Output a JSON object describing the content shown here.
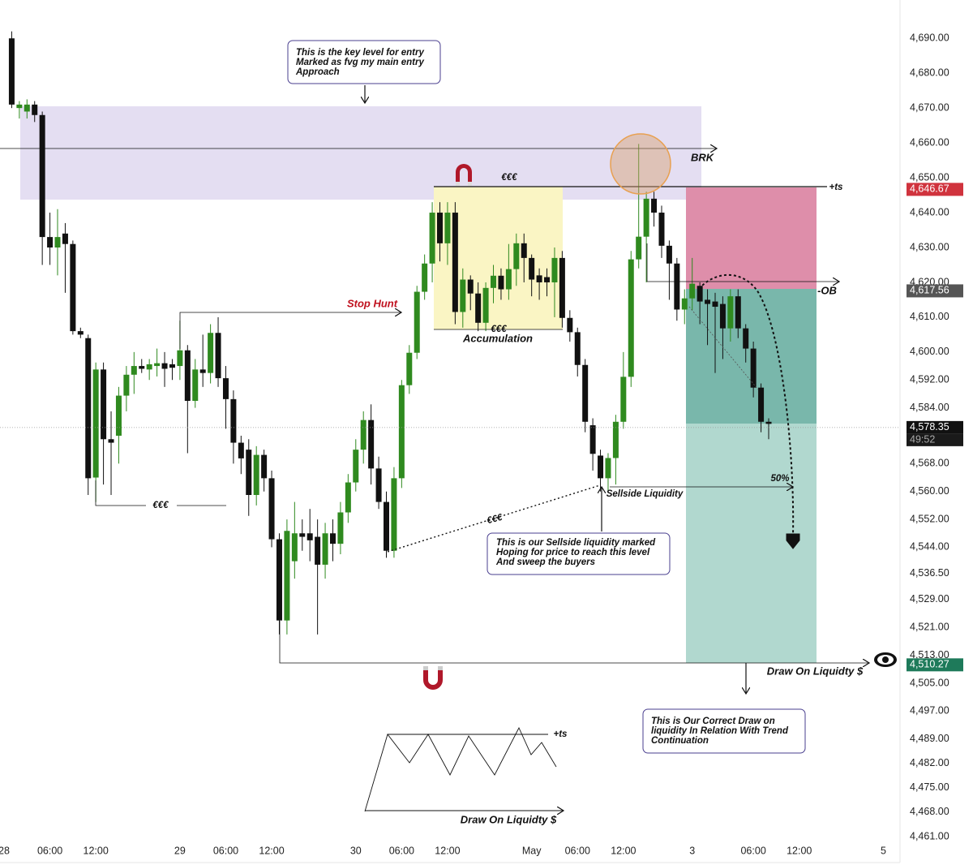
{
  "chart_data": {
    "type": "candlestick",
    "up_color": "#2f8a1f",
    "down_color": "#111111",
    "x": [
      1,
      2,
      3,
      4,
      5,
      6,
      7,
      8,
      9,
      10,
      11,
      12,
      13,
      14,
      15,
      16,
      17,
      18,
      19,
      20,
      21,
      22,
      23,
      24,
      25,
      26,
      27,
      28,
      29,
      30,
      31,
      32,
      33,
      34,
      35,
      36,
      37,
      38,
      39,
      40,
      41,
      42,
      43,
      44,
      45,
      46,
      47,
      48,
      49,
      50,
      51,
      52,
      53,
      54,
      55,
      56,
      57,
      58,
      59,
      60,
      61,
      62,
      63,
      64,
      65,
      66,
      67,
      68,
      69,
      70,
      71,
      72,
      73,
      74,
      75,
      76,
      77,
      78,
      79,
      80,
      81,
      82,
      83,
      84,
      85,
      86,
      87,
      88,
      89,
      90,
      91,
      92,
      93,
      94,
      95,
      96,
      97,
      98,
      99,
      100
    ],
    "open": [
      4690,
      4670,
      4669,
      4671,
      4668,
      4633,
      4630,
      4634,
      4631,
      4606,
      4604,
      4564,
      4595,
      4575,
      4576,
      4587.5,
      4593.5,
      4596,
      4595,
      4596,
      4596.8,
      4596.5,
      4596,
      4600.5,
      4586,
      4595,
      4594,
      4605.5,
      4592.5,
      4586.5,
      4574,
      4572,
      4559,
      4570.5,
      4563.8,
      4546.3,
      4523,
      4540,
      4548,
      4548,
      4547,
      4539,
      4548,
      4545,
      4554,
      4562.6,
      4572,
      4580.5,
      4566.6,
      4557,
      4543,
      4563.8,
      4590.5,
      4599.8,
      4617.3,
      4625.4,
      4640,
      4631.2,
      4640,
      4611.5,
      4620.8,
      4616.8,
      4608.4,
      4618.4,
      4621.9,
      4618,
      4623.8,
      4631.2,
      4627,
      4622,
      4621.5,
      4620,
      4627,
      4609.8,
      4605.7,
      4596.3,
      4579,
      4570.3,
      4563.8,
      4569.6,
      4580,
      4592.9,
      4626.6,
      4633.1,
      4644,
      4640,
      4630.5,
      4625.4,
      4612.2,
      4615.4,
      4619,
      4615,
      4614.5,
      4613.8,
      4606.8,
      4616,
      4606.8,
      4601,
      4589.8,
      4580
    ],
    "high": [
      4692,
      4672,
      4672.5,
      4672,
      4669,
      4640,
      4641,
      4637,
      4632,
      4607,
      4605,
      4597,
      4597,
      4583,
      4590,
      4596,
      4600,
      4598,
      4598,
      4601,
      4600,
      4598,
      4609,
      4602,
      4598,
      4605,
      4608,
      4610,
      4596,
      4589,
      4576,
      4575,
      4573,
      4572,
      4566,
      4548,
      4552,
      4557,
      4552,
      4555,
      4552,
      4551,
      4552,
      4557,
      4565,
      4575,
      4583,
      4585,
      4570,
      4560,
      4567,
      4592,
      4602,
      4619,
      4628,
      4643,
      4643,
      4643,
      4643,
      4624,
      4622,
      4620,
      4620,
      4625,
      4624,
      4631,
      4634,
      4634,
      4628,
      4624,
      4624,
      4630,
      4629,
      4612,
      4607,
      4598,
      4581,
      4572,
      4571,
      4582,
      4600,
      4629,
      4659.7,
      4646,
      4646,
      4642,
      4632,
      4627,
      4618,
      4627,
      4620,
      4618,
      4617,
      4616,
      4618,
      4618,
      4608,
      4603,
      4591,
      4581
    ],
    "low": [
      4670,
      4667,
      4667,
      4666,
      4625,
      4625,
      4622,
      4617,
      4605,
      4604,
      4559,
      4557,
      4562,
      4559,
      4568,
      4583,
      4588,
      4594,
      4592,
      4593,
      4590,
      4592,
      4592,
      4571,
      4584,
      4590,
      4591,
      4590,
      4578,
      4568,
      4565,
      4553,
      4556,
      4560,
      4544,
      4519,
      4519,
      4535,
      4543,
      4540,
      4519,
      4535,
      4540,
      4542,
      4551,
      4560,
      4568,
      4562,
      4555,
      4541,
      4541,
      4561,
      4588,
      4598,
      4615,
      4620,
      4626,
      4625,
      4608,
      4607,
      4612,
      4606,
      4606,
      4614,
      4615,
      4615,
      4619,
      4620,
      4616,
      4615,
      4616,
      4610,
      4607,
      4603,
      4593,
      4577,
      4566,
      4560,
      4560,
      4562,
      4578,
      4590,
      4624,
      4620,
      4636,
      4627,
      4615,
      4609,
      4608,
      4612,
      4608,
      4602,
      4594,
      4598,
      4603,
      4604,
      4597,
      4587,
      4577,
      4575
    ],
    "close": [
      4671,
      4671,
      4671,
      4668,
      4633,
      4630,
      4633,
      4631,
      4606,
      4605,
      4563.8,
      4595,
      4575,
      4574,
      4587.5,
      4593.5,
      4596,
      4595.2,
      4596.5,
      4596.8,
      4595.2,
      4595.5,
      4600.5,
      4586,
      4595,
      4594,
      4605.5,
      4592.5,
      4586.5,
      4574,
      4569.5,
      4559,
      4570.5,
      4563.8,
      4546.3,
      4523,
      4548.7,
      4548,
      4547,
      4546,
      4539,
      4548,
      4545,
      4554,
      4562.6,
      4572,
      4580.5,
      4566.6,
      4557,
      4543,
      4563.8,
      4590.5,
      4599.8,
      4617.3,
      4625.4,
      4640,
      4631.2,
      4640,
      4611.5,
      4620.8,
      4616.8,
      4608.4,
      4618.4,
      4621.9,
      4618,
      4623.8,
      4631.2,
      4627,
      4620.8,
      4620,
      4620,
      4627,
      4609.8,
      4605.7,
      4596.3,
      4580,
      4570.8,
      4563.8,
      4569.6,
      4580,
      4592.9,
      4626.6,
      4633.1,
      4644,
      4640,
      4630.5,
      4625.4,
      4612.2,
      4615.4,
      4619.6,
      4614.5,
      4613.8,
      4613,
      4606.8,
      4616,
      4606.8,
      4601,
      4589.8,
      4580,
      4579.4
    ],
    "ylim": [
      4458.9,
      4701
    ],
    "yticks": [
      {
        "value": 4690,
        "label": "4,690.00"
      },
      {
        "value": 4680,
        "label": "4,680.00"
      },
      {
        "value": 4670,
        "label": "4,670.00"
      },
      {
        "value": 4660,
        "label": "4,660.00"
      },
      {
        "value": 4650,
        "label": "4,650.00"
      },
      {
        "value": 4640,
        "label": "4,640.00"
      },
      {
        "value": 4630,
        "label": "4,630.00"
      },
      {
        "value": 4620,
        "label": "4,620.00"
      },
      {
        "value": 4610,
        "label": "4,610.00"
      },
      {
        "value": 4600,
        "label": "4,600.00"
      },
      {
        "value": 4592,
        "label": "4,592.00"
      },
      {
        "value": 4584,
        "label": "4,584.00"
      },
      {
        "value": 4568,
        "label": "4,568.00"
      },
      {
        "value": 4560,
        "label": "4,560.00"
      },
      {
        "value": 4552,
        "label": "4,552.00"
      },
      {
        "value": 4544,
        "label": "4,544.00"
      },
      {
        "value": 4536.5,
        "label": "4,536.50"
      },
      {
        "value": 4529,
        "label": "4,529.00"
      },
      {
        "value": 4521,
        "label": "4,521.00"
      },
      {
        "value": 4513,
        "label": "4,513.00"
      },
      {
        "value": 4505,
        "label": "4,505.00"
      },
      {
        "value": 4497,
        "label": "4,497.00"
      },
      {
        "value": 4489,
        "label": "4,489.00"
      },
      {
        "value": 4482,
        "label": "4,482.00"
      },
      {
        "value": 4475,
        "label": "4,475.00"
      },
      {
        "value": 4468,
        "label": "4,468.00"
      },
      {
        "value": 4461,
        "label": "4,461.00"
      }
    ],
    "xticks": [
      {
        "value": 0,
        "label": "28"
      },
      {
        "value": 6,
        "label": "06:00"
      },
      {
        "value": 12,
        "label": "12:00"
      },
      {
        "value": 23,
        "label": "29"
      },
      {
        "value": 29,
        "label": "06:00"
      },
      {
        "value": 35,
        "label": "12:00"
      },
      {
        "value": 46,
        "label": "30"
      },
      {
        "value": 52,
        "label": "06:00"
      },
      {
        "value": 58,
        "label": "12:00"
      },
      {
        "value": 69,
        "label": "May"
      },
      {
        "value": 75,
        "label": "06:00"
      },
      {
        "value": 81,
        "label": "12:00"
      },
      {
        "value": 90,
        "label": "3"
      },
      {
        "value": 98,
        "label": "06:00"
      },
      {
        "value": 104,
        "label": "12:00"
      },
      {
        "value": 115,
        "label": "5"
      }
    ],
    "price_tags": [
      {
        "value": 4646.67,
        "label": "4,646.67",
        "color": "#d0333d"
      },
      {
        "value": 4617.56,
        "label": "4,617.56",
        "color": "#555555"
      },
      {
        "value": 4578.35,
        "label": "4,578.35",
        "color": "#111111",
        "countdown": "49:52"
      },
      {
        "value": 4510.27,
        "label": "4,510.27",
        "color": "#1e7a5a"
      }
    ],
    "annotations": {
      "key_level": [
        "This is the key level for entry",
        "Marked as fvg my main entry",
        "Approach"
      ],
      "brk": "BRK",
      "eee_top": "€€€",
      "ts_top": "+ts",
      "eee_acc": "€€€",
      "accumulation": "Accumulation",
      "stop_hunt": "Stop Hunt",
      "ob": "-OB",
      "eee_low": "€€€",
      "eee_dotted": "€€€",
      "sellside": "Sellside Liquidity",
      "fifty": "50%",
      "sellside_note": [
        "This is our Sellside liquidity marked",
        "Hoping for price to reach this level",
        "And sweep the buyers"
      ],
      "draw_main": "Draw On Liquidty $",
      "draw_note": [
        "This is Our Correct Draw on",
        "liquidity In Relation With Trend",
        "Continuation"
      ],
      "ts_sketch": "+ts",
      "draw_sketch": "Draw On Liquidty $"
    }
  }
}
